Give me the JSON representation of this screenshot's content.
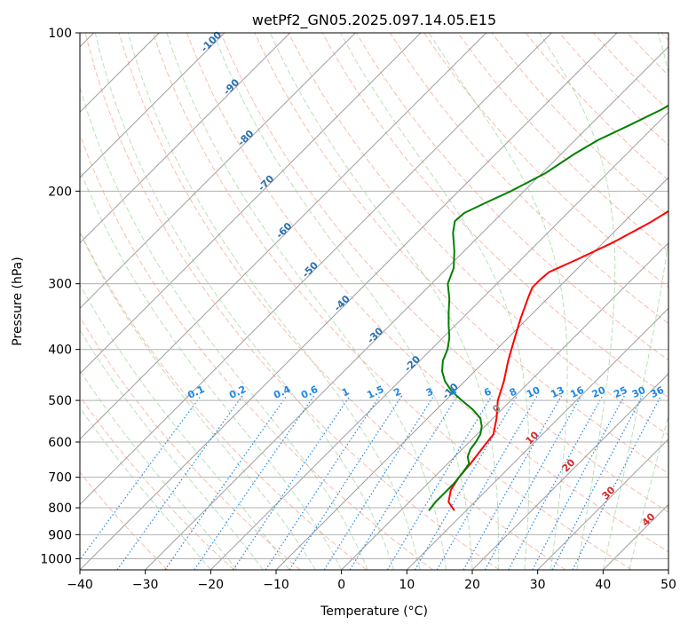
{
  "chart_data": {
    "type": "line",
    "title": "wetPf2_GN05.2025.097.14.05.E15",
    "xlabel": "Temperature (°C)",
    "ylabel": "Pressure (hPa)",
    "xlim": [
      -40,
      50
    ],
    "ylim": [
      1050,
      100
    ],
    "y_scale": "log",
    "grid": true,
    "x_ticks": [
      -40,
      -30,
      -20,
      -10,
      0,
      10,
      20,
      30,
      40,
      50
    ],
    "y_ticks": [
      100,
      200,
      300,
      400,
      500,
      600,
      700,
      800,
      900,
      1000
    ],
    "skew_isotherms": {
      "labels": [
        -100,
        -90,
        -80,
        -70,
        -60,
        -50,
        -40,
        -30,
        -20,
        -10
      ],
      "label_pressures": [
        105,
        128,
        160,
        195,
        240,
        285,
        330,
        380,
        430,
        485
      ]
    },
    "mixing_ratio_lines": {
      "labels": [
        "0.1",
        "0.2",
        "0.4",
        "0.6",
        "1",
        "1.5",
        "2",
        "3",
        "4",
        "6",
        "8",
        "10",
        "13",
        "16",
        "20",
        "25",
        "30",
        "36"
      ]
    },
    "isotherm_labels": [
      "0",
      "10",
      "20",
      "30",
      "40"
    ],
    "series": [
      {
        "color": "#ff0000",
        "p": [
          810,
          780,
          740,
          700,
          660,
          620,
          580,
          540,
          500,
          460,
          420,
          380,
          350,
          320,
          305,
          295,
          285,
          270,
          250,
          230,
          210,
          190,
          170,
          150,
          140,
          130,
          122,
          115,
          108,
          100
        ],
        "t": [
          8.2,
          6,
          4.5,
          3.8,
          3.5,
          3,
          2.5,
          0.5,
          -2,
          -4,
          -6.5,
          -9,
          -11,
          -13,
          -14,
          -14,
          -13.8,
          -11.5,
          -8.5,
          -6,
          -4,
          -2,
          -1,
          1,
          1.5,
          3,
          10,
          14.5,
          17,
          21.5
        ]
      },
      {
        "color": "#008000",
        "p": [
          810,
          780,
          750,
          720,
          690,
          660,
          640,
          620,
          600,
          580,
          560,
          540,
          520,
          500,
          480,
          460,
          440,
          420,
          400,
          380,
          360,
          340,
          320,
          300,
          280,
          260,
          240,
          228,
          220,
          210,
          200,
          185,
          170,
          160,
          150,
          140,
          130,
          120,
          110,
          100
        ],
        "t": [
          4.3,
          4,
          4,
          4,
          3.7,
          3.3,
          2,
          1.3,
          1,
          0.5,
          -0.5,
          -2,
          -4.5,
          -7.5,
          -10.5,
          -13,
          -15,
          -16.5,
          -17.5,
          -19,
          -21,
          -23,
          -25,
          -27.5,
          -29,
          -31.5,
          -34.5,
          -36,
          -35.8,
          -34,
          -32,
          -29.5,
          -28,
          -26.5,
          -24,
          -21.5,
          -19.5,
          -17.5,
          -14,
          -10
        ]
      }
    ]
  }
}
